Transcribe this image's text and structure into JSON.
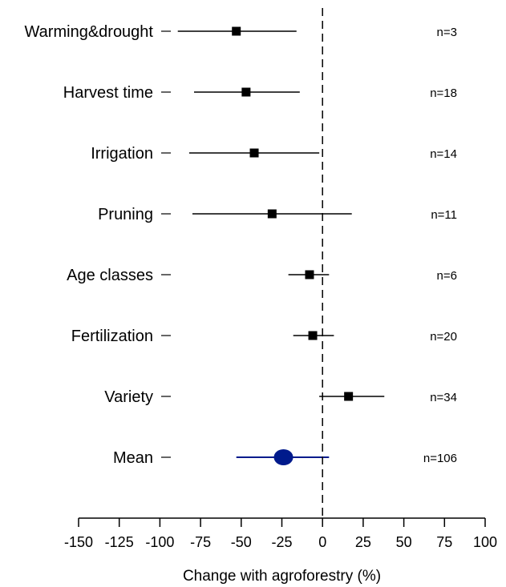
{
  "chart_data": {
    "type": "forest",
    "title": "",
    "xlabel": "Change with agroforestry (%)",
    "ylabel": "",
    "xlim": [
      -150,
      100
    ],
    "xticks": [
      -150,
      -125,
      -100,
      -75,
      -50,
      -25,
      0,
      25,
      50,
      75,
      100
    ],
    "xtick_labels": [
      "-150",
      "-125",
      "-100",
      "-75",
      "-50",
      "-25",
      "0",
      "25",
      "50",
      "75",
      "100"
    ],
    "reference_line": 0,
    "grid": false,
    "items": [
      {
        "label": "Warming&drought",
        "estimate": -53,
        "ci_low": -89,
        "ci_high": -16,
        "n": "n=3",
        "marker": "square",
        "color": "#000000"
      },
      {
        "label": "Harvest time",
        "estimate": -47,
        "ci_low": -79,
        "ci_high": -14,
        "n": "n=18",
        "marker": "square",
        "color": "#000000"
      },
      {
        "label": "Irrigation",
        "estimate": -42,
        "ci_low": -82,
        "ci_high": -2,
        "n": "n=14",
        "marker": "square",
        "color": "#000000"
      },
      {
        "label": "Pruning",
        "estimate": -31,
        "ci_low": -80,
        "ci_high": 18,
        "n": "n=11",
        "marker": "square",
        "color": "#000000"
      },
      {
        "label": "Age classes",
        "estimate": -8,
        "ci_low": -21,
        "ci_high": 4,
        "n": "n=6",
        "marker": "square",
        "color": "#000000"
      },
      {
        "label": "Fertilization",
        "estimate": -6,
        "ci_low": -18,
        "ci_high": 7,
        "n": "n=20",
        "marker": "square",
        "color": "#000000"
      },
      {
        "label": "Variety",
        "estimate": 16,
        "ci_low": -2,
        "ci_high": 38,
        "n": "n=34",
        "marker": "square",
        "color": "#000000"
      },
      {
        "label": "Mean",
        "estimate": -24,
        "ci_low": -53,
        "ci_high": 4,
        "n": "n=106",
        "marker": "circle",
        "color": "#001a8c"
      }
    ]
  }
}
